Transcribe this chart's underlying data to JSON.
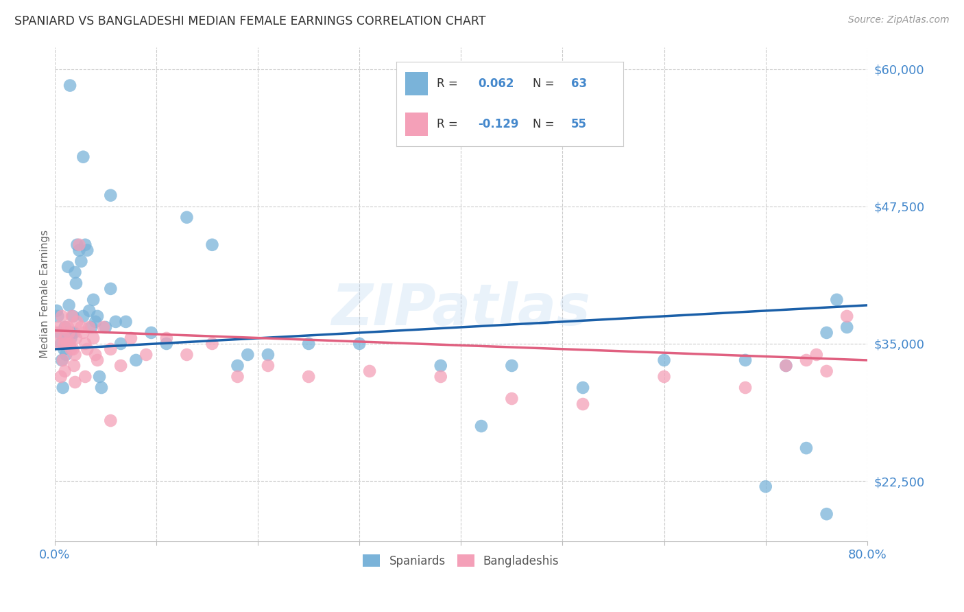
{
  "title": "SPANIARD VS BANGLADESHI MEDIAN FEMALE EARNINGS CORRELATION CHART",
  "source": "Source: ZipAtlas.com",
  "ylabel": "Median Female Earnings",
  "yticks": [
    22500,
    35000,
    47500,
    60000
  ],
  "ytick_labels": [
    "$22,500",
    "$35,000",
    "$47,500",
    "$60,000"
  ],
  "watermark": "ZIPatlas",
  "legend_bottom": [
    "Spaniards",
    "Bangladeshis"
  ],
  "spaniards_color": "#7ab3d9",
  "bangladeshis_color": "#f4a0b8",
  "trend_spaniards_color": "#1a5fa8",
  "trend_bangladeshis_color": "#e06080",
  "background_color": "#ffffff",
  "grid_color": "#cccccc",
  "title_color": "#333333",
  "axis_color": "#4488cc",
  "spaniards_x": [
    0.002,
    0.003,
    0.005,
    0.006,
    0.007,
    0.008,
    0.009,
    0.01,
    0.011,
    0.012,
    0.013,
    0.014,
    0.015,
    0.016,
    0.017,
    0.018,
    0.019,
    0.02,
    0.021,
    0.022,
    0.024,
    0.026,
    0.028,
    0.03,
    0.032,
    0.034,
    0.036,
    0.038,
    0.04,
    0.042,
    0.044,
    0.046,
    0.05,
    0.055,
    0.06,
    0.065,
    0.07,
    0.08,
    0.095,
    0.11,
    0.13,
    0.155,
    0.18,
    0.21,
    0.25,
    0.3,
    0.38,
    0.45,
    0.52,
    0.6,
    0.68,
    0.72,
    0.76,
    0.78,
    0.015,
    0.028,
    0.055,
    0.19,
    0.42,
    0.7,
    0.74,
    0.76,
    0.77
  ],
  "spaniards_y": [
    38000,
    37500,
    36000,
    35000,
    33500,
    31000,
    34500,
    36500,
    34000,
    36000,
    42000,
    38500,
    36000,
    35500,
    36000,
    37500,
    36000,
    41500,
    40500,
    44000,
    43500,
    42500,
    37500,
    44000,
    43500,
    38000,
    36500,
    39000,
    37000,
    37500,
    32000,
    31000,
    36500,
    40000,
    37000,
    35000,
    37000,
    33500,
    36000,
    35000,
    46500,
    44000,
    33000,
    34000,
    35000,
    35000,
    33000,
    33000,
    31000,
    33500,
    33500,
    33000,
    36000,
    36500,
    58500,
    52000,
    48500,
    34000,
    27500,
    22000,
    25500,
    19500,
    39000
  ],
  "bangladeshis_x": [
    0.002,
    0.004,
    0.005,
    0.006,
    0.007,
    0.008,
    0.009,
    0.01,
    0.011,
    0.012,
    0.013,
    0.014,
    0.015,
    0.016,
    0.017,
    0.018,
    0.019,
    0.02,
    0.021,
    0.022,
    0.024,
    0.026,
    0.028,
    0.03,
    0.032,
    0.034,
    0.038,
    0.042,
    0.048,
    0.055,
    0.065,
    0.075,
    0.09,
    0.11,
    0.13,
    0.155,
    0.18,
    0.21,
    0.25,
    0.31,
    0.38,
    0.45,
    0.52,
    0.6,
    0.68,
    0.72,
    0.74,
    0.75,
    0.76,
    0.78,
    0.01,
    0.02,
    0.03,
    0.04,
    0.055
  ],
  "bangladeshis_y": [
    36000,
    36500,
    35000,
    32000,
    37500,
    33500,
    35000,
    35500,
    36500,
    35000,
    36500,
    36000,
    35000,
    34500,
    37500,
    34500,
    33000,
    34000,
    35500,
    37000,
    44000,
    36500,
    36000,
    35000,
    34500,
    36500,
    35500,
    33500,
    36500,
    34500,
    33000,
    35500,
    34000,
    35500,
    34000,
    35000,
    32000,
    33000,
    32000,
    32500,
    32000,
    30000,
    29500,
    32000,
    31000,
    33000,
    33500,
    34000,
    32500,
    37500,
    32500,
    31500,
    32000,
    34000,
    28000
  ],
  "xlim": [
    0.0,
    0.8
  ],
  "ylim": [
    17000,
    62000
  ],
  "figsize": [
    14.06,
    8.92
  ],
  "dpi": 100,
  "legend_r1": "R = 0.062",
  "legend_n1": "N = 63",
  "legend_r2": "R = -0.129",
  "legend_n2": "N = 55"
}
